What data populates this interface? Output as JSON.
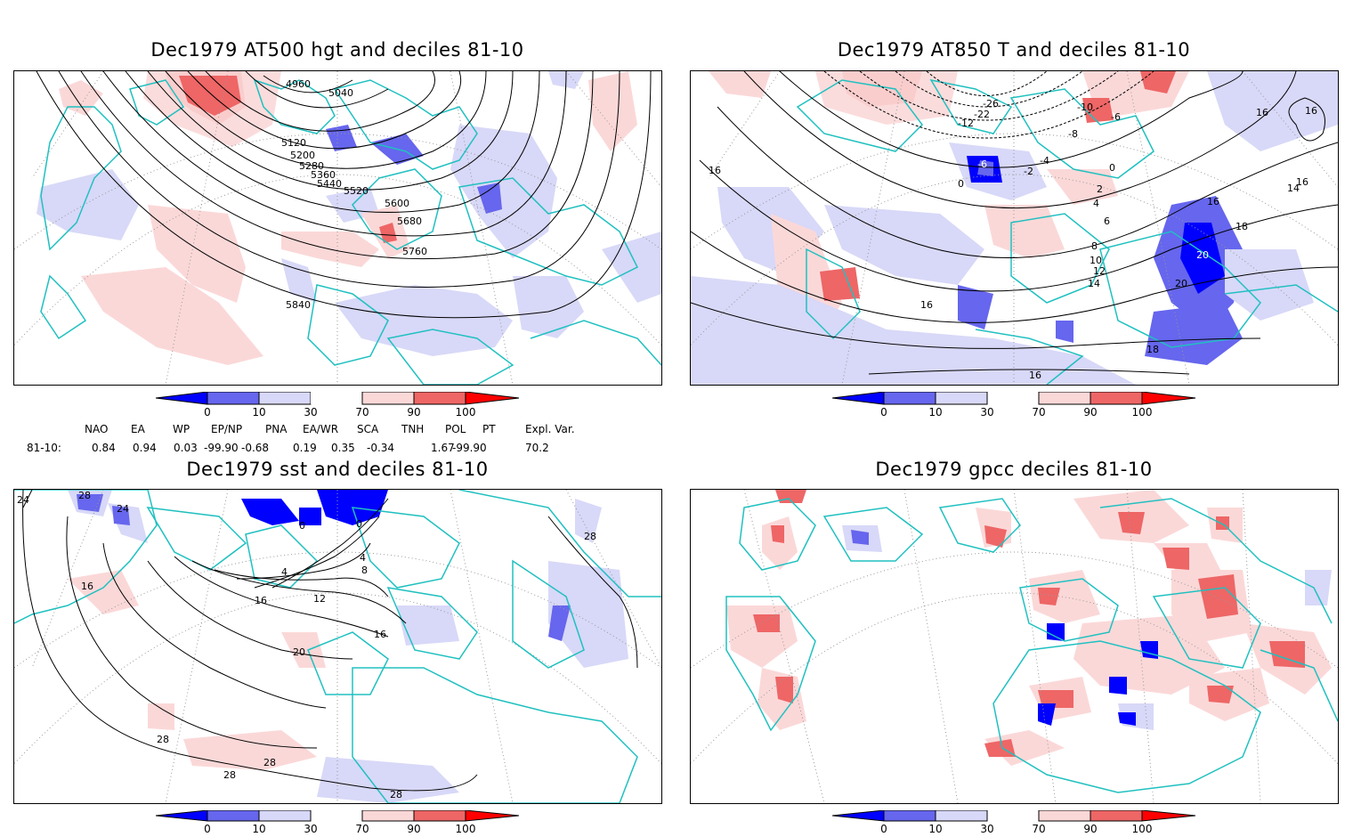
{
  "panels": [
    {
      "id": "hgt500",
      "title": "Dec1979 AT500 hgt and deciles 81-10",
      "contour_labels": [
        "4960",
        "5040",
        "5120",
        "5200",
        "5280",
        "5360",
        "5440",
        "5520",
        "5600",
        "5680",
        "5760",
        "5840"
      ]
    },
    {
      "id": "t850",
      "title": "Dec1979 AT850 T and deciles 81-10",
      "contour_labels": [
        "-26",
        "-22",
        "-10",
        "-6",
        "-8",
        "-4",
        "-2",
        "0",
        "2",
        "4",
        "6",
        "8",
        "10",
        "12",
        "14",
        "16",
        "18",
        "20"
      ]
    },
    {
      "id": "sst",
      "title": "Dec1979 sst and deciles 81-10",
      "contour_labels": [
        "28",
        "24",
        "16",
        "0",
        "4",
        "8",
        "12",
        "16",
        "20",
        "28",
        "28",
        "28"
      ]
    },
    {
      "id": "gpcc",
      "title": "Dec1979 gpcc deciles 81-10",
      "contour_labels": []
    }
  ],
  "colorbar": {
    "labels": [
      "0",
      "10",
      "30",
      "70",
      "90",
      "100"
    ],
    "colors": [
      "#0000ff",
      "#6666ee",
      "#d8d8f8",
      "#ffffff",
      "#fbd8d8",
      "#ee6666",
      "#ff0000"
    ]
  },
  "indices": {
    "headers": [
      "NAO",
      "EA",
      "WP",
      "EP/NP",
      "PNA",
      "EA/WR",
      "SCA",
      "TNH",
      "POL",
      "PT",
      "Expl. Var."
    ],
    "row_label": "81-10:",
    "values": [
      "0.84",
      "0.94",
      "0.03",
      "-99.90",
      "-0.68",
      "0.19",
      "0.35",
      "-0.34",
      "1.67",
      "-99.90",
      "70.2"
    ]
  },
  "colors": {
    "coast": "#20c0c0",
    "contour": "#000000",
    "grid": "#999999"
  }
}
